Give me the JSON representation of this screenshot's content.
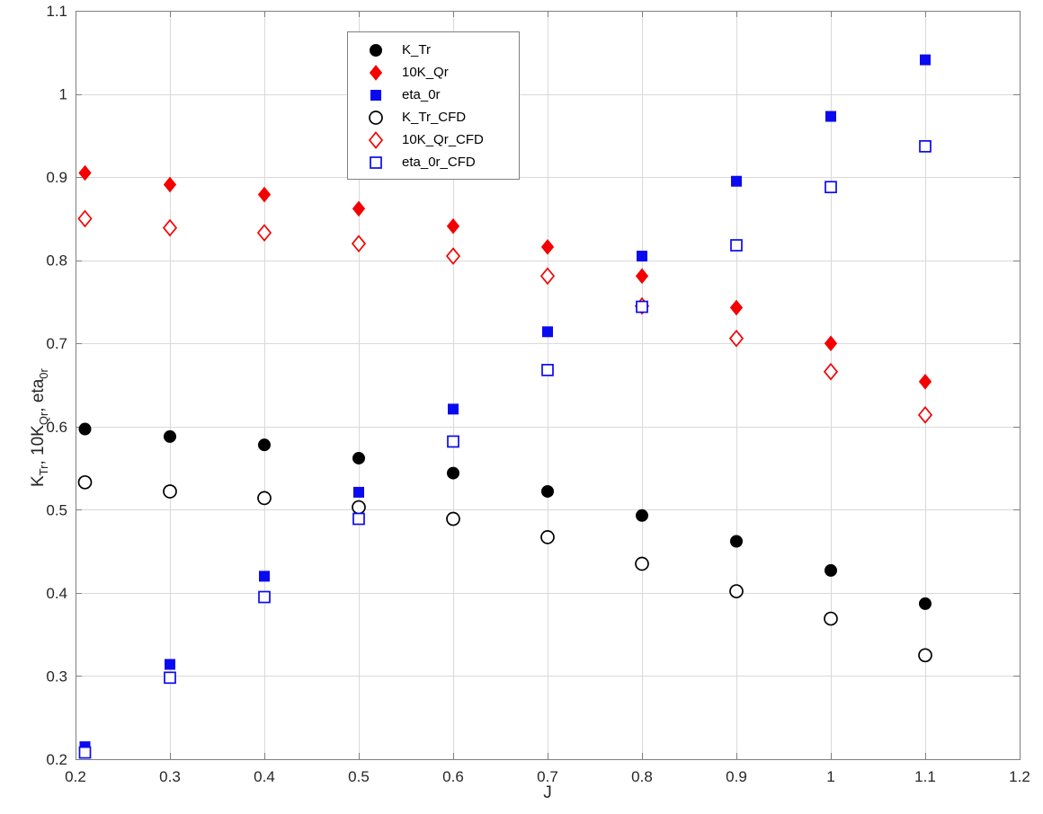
{
  "chart_data": {
    "type": "scatter",
    "title": "",
    "xlabel": "J",
    "ylabel": "K_Tr, 10K_Qr, eta_0r",
    "ylabel_parts": {
      "p1": "K",
      "s1": "Tr",
      "p2": ", 10K",
      "s2": "Qr",
      "p3": ", eta",
      "s3": "0r"
    },
    "xlim": [
      0.2,
      1.2
    ],
    "ylim": [
      0.2,
      1.1
    ],
    "xticks": [
      0.2,
      0.3,
      0.4,
      0.5,
      0.6,
      0.7,
      0.8,
      0.9,
      1,
      1.1,
      1.2
    ],
    "yticks": [
      0.2,
      0.3,
      0.4,
      0.5,
      0.6,
      0.7,
      0.8,
      0.9,
      1,
      1.1
    ],
    "xtick_labels": [
      "0.2",
      "0.3",
      "0.4",
      "0.5",
      "0.6",
      "0.7",
      "0.8",
      "0.9",
      "1",
      "1.1",
      "1.2"
    ],
    "ytick_labels": [
      "0.2",
      "0.3",
      "0.4",
      "0.5",
      "0.6",
      "0.7",
      "0.8",
      "0.9",
      "1",
      "1.1"
    ],
    "grid": true,
    "legend_position": "inside-top-center-left",
    "x": [
      0.21,
      0.3,
      0.4,
      0.5,
      0.6,
      0.7,
      0.8,
      0.9,
      1.0,
      1.1
    ],
    "series": [
      {
        "name": "K_Tr",
        "marker": "circle",
        "fill": "filled",
        "color": "#000000",
        "values": [
          0.597,
          0.588,
          0.578,
          0.562,
          0.544,
          0.522,
          0.493,
          0.462,
          0.427,
          0.387
        ]
      },
      {
        "name": "10K_Qr",
        "marker": "diamond",
        "fill": "filled",
        "color": "#f40000",
        "values": [
          0.905,
          0.891,
          0.879,
          0.862,
          0.841,
          0.816,
          0.781,
          0.743,
          0.7,
          0.654
        ]
      },
      {
        "name": "eta_0r",
        "marker": "square",
        "fill": "filled",
        "color": "#0a0af0",
        "values": [
          0.215,
          0.314,
          0.42,
          0.521,
          0.621,
          0.714,
          0.805,
          0.895,
          0.973,
          1.041
        ]
      },
      {
        "name": "K_Tr_CFD",
        "marker": "circle",
        "fill": "open",
        "color": "#000000",
        "values": [
          0.533,
          0.522,
          0.514,
          0.503,
          0.489,
          0.467,
          0.435,
          0.402,
          0.369,
          0.325
        ]
      },
      {
        "name": "10K_Qr_CFD",
        "marker": "diamond",
        "fill": "open",
        "color": "#f40000",
        "values": [
          0.85,
          0.839,
          0.833,
          0.82,
          0.805,
          0.781,
          0.745,
          0.706,
          0.666,
          0.614
        ]
      },
      {
        "name": "eta_0r_CFD",
        "marker": "square",
        "fill": "open",
        "color": "#0a0af0",
        "values": [
          0.208,
          0.298,
          0.395,
          0.489,
          0.582,
          0.668,
          0.744,
          0.818,
          0.888,
          0.937
        ]
      }
    ],
    "style": {
      "axis_color": "#7f7f7f",
      "grid_color": "#d9d9d9",
      "tick_label_color": "#262626",
      "legend_border_color": "#808080",
      "background": "#ffffff"
    }
  }
}
